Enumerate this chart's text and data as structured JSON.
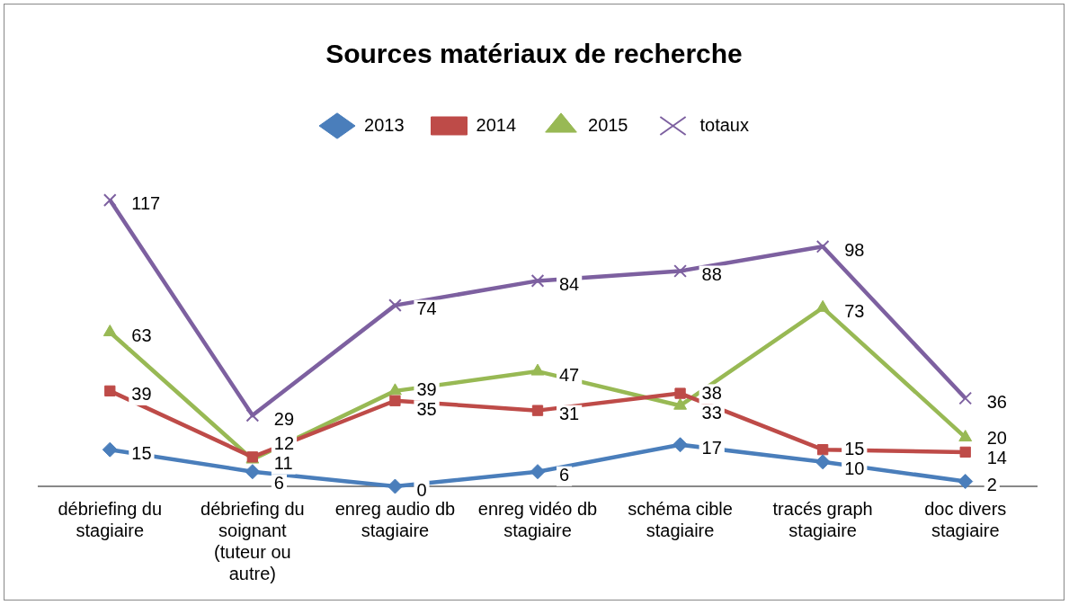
{
  "chart_data": {
    "type": "line",
    "title": "Sources matériaux de recherche",
    "categories": [
      "débriefing du stagiaire",
      "débriefing du soignant (tuteur ou autre)",
      "enreg audio db stagiaire",
      "enreg vidéo db stagiaire",
      "schéma cible stagiaire",
      "tracés graph stagiaire",
      "doc divers stagiaire"
    ],
    "series": [
      {
        "name": "2013",
        "color": "#4a7ebb",
        "marker": "diamond",
        "values": [
          15,
          6,
          0,
          6,
          17,
          10,
          2
        ]
      },
      {
        "name": "2014",
        "color": "#be4b48",
        "marker": "square",
        "values": [
          39,
          12,
          35,
          31,
          38,
          15,
          14
        ]
      },
      {
        "name": "2015",
        "color": "#98b954",
        "marker": "triangle",
        "values": [
          63,
          11,
          39,
          47,
          33,
          73,
          20
        ]
      },
      {
        "name": "totaux",
        "color": "#7d60a0",
        "marker": "cross",
        "values": [
          117,
          29,
          74,
          84,
          88,
          98,
          36
        ]
      }
    ],
    "legend": "top",
    "data_labels": true,
    "grid": false,
    "tick_labels": "x",
    "line_style": "solid"
  }
}
